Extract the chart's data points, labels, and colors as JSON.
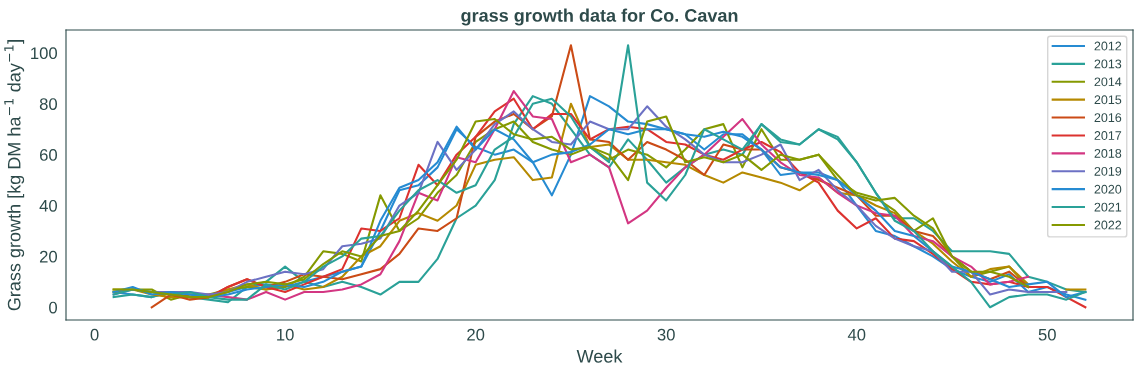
{
  "chart_data": {
    "type": "line",
    "title": "grass growth data for Co. Cavan",
    "xlabel": "Week",
    "ylabel": "Grass growth [kg DM ha$^{−1}$ day$^{−1}$]",
    "x": [
      1,
      2,
      3,
      4,
      5,
      6,
      7,
      8,
      9,
      10,
      11,
      12,
      13,
      14,
      15,
      16,
      17,
      18,
      19,
      20,
      21,
      22,
      23,
      24,
      25,
      26,
      27,
      28,
      29,
      30,
      31,
      32,
      33,
      34,
      35,
      36,
      37,
      38,
      39,
      40,
      41,
      42,
      43,
      44,
      45,
      46,
      47,
      48,
      49,
      50,
      51,
      52
    ],
    "xlim": [
      -1.5,
      54.5
    ],
    "xticks": [
      0,
      10,
      20,
      30,
      40,
      50
    ],
    "ylim": [
      -5,
      109
    ],
    "yticks": [
      0,
      20,
      40,
      60,
      80,
      100
    ],
    "grid": false,
    "legend": "top right",
    "line_style": "solid",
    "marker": "none",
    "series": [
      {
        "name": "2012",
        "color": "#268bd2",
        "values": [
          6,
          5,
          4,
          6,
          5,
          4,
          6,
          8,
          9,
          8,
          10,
          12,
          14,
          16,
          30,
          46,
          48,
          55,
          70,
          63,
          60,
          62,
          57,
          44,
          60,
          83,
          79,
          73,
          72,
          70,
          68,
          62,
          68,
          68,
          62,
          52,
          53,
          53,
          50,
          40,
          30,
          28,
          24,
          20,
          15,
          12,
          10,
          13,
          6,
          8,
          5,
          3
        ]
      },
      {
        "name": "2013",
        "color": "#2aa198",
        "values": [
          4,
          5,
          4,
          6,
          4,
          3,
          2,
          8,
          10,
          16,
          10,
          8,
          10,
          8,
          5,
          10,
          10,
          19,
          35,
          40,
          50,
          72,
          83,
          80,
          70,
          60,
          55,
          66,
          58,
          49,
          55,
          60,
          62,
          60,
          72,
          65,
          64,
          70,
          66,
          57,
          45,
          35,
          35,
          30,
          22,
          22,
          22,
          21,
          12,
          10,
          7,
          6
        ]
      },
      {
        "name": "2014",
        "color": "#859900",
        "values": [
          6,
          7,
          7,
          3,
          5,
          5,
          7,
          8,
          7,
          8,
          12,
          22,
          21,
          18,
          44,
          30,
          35,
          45,
          52,
          65,
          70,
          73,
          65,
          62,
          60,
          63,
          58,
          62,
          60,
          55,
          62,
          70,
          72,
          55,
          70,
          58,
          58,
          60,
          50,
          45,
          43,
          38,
          30,
          35,
          20,
          12,
          14,
          16,
          8,
          null,
          null,
          null
        ]
      },
      {
        "name": "2015",
        "color": "#b58900",
        "values": [
          7,
          7,
          5,
          4,
          4,
          4,
          7,
          9,
          7,
          9,
          7,
          8,
          12,
          20,
          24,
          34,
          37,
          34,
          40,
          56,
          58,
          59,
          50,
          51,
          80,
          63,
          64,
          58,
          58,
          57,
          56,
          52,
          49,
          53,
          51,
          49,
          46,
          51,
          45,
          44,
          40,
          37,
          30,
          25,
          18,
          12,
          15,
          16,
          9,
          null,
          7,
          7
        ]
      },
      {
        "name": "2016",
        "color": "#cb4b16",
        "values": [
          null,
          null,
          0,
          5,
          3,
          4,
          8,
          11,
          8,
          10,
          13,
          12,
          11,
          13,
          15,
          21,
          31,
          30,
          35,
          67,
          73,
          76,
          70,
          75,
          103,
          66,
          65,
          58,
          65,
          62,
          58,
          52,
          64,
          62,
          62,
          55,
          53,
          50,
          47,
          44,
          36,
          36,
          30,
          28,
          20,
          14,
          11,
          14,
          8,
          null,
          null,
          null
        ]
      },
      {
        "name": "2017",
        "color": "#dc322f",
        "values": [
          null,
          null,
          null,
          5,
          4,
          4,
          8,
          11,
          8,
          6,
          9,
          12,
          15,
          31,
          30,
          35,
          56,
          48,
          60,
          67,
          77,
          82,
          70,
          76,
          76,
          66,
          70,
          71,
          70,
          65,
          64,
          60,
          58,
          62,
          65,
          61,
          53,
          49,
          38,
          31,
          35,
          27,
          26,
          21,
          15,
          10,
          9,
          10,
          8,
          8,
          4,
          0
        ]
      },
      {
        "name": "2018",
        "color": "#d33682",
        "values": [
          null,
          null,
          null,
          null,
          4,
          5,
          4,
          3,
          6,
          3,
          6,
          6,
          7,
          9,
          13,
          26,
          45,
          42,
          59,
          57,
          70,
          85,
          75,
          74,
          57,
          60,
          55,
          33,
          38,
          47,
          55,
          60,
          67,
          74,
          64,
          57,
          52,
          51,
          45,
          40,
          37,
          36,
          28,
          26,
          20,
          16,
          9,
          10,
          12,
          null,
          null,
          null
        ]
      },
      {
        "name": "2019",
        "color": "#6c71c4",
        "values": [
          5,
          7,
          6,
          6,
          6,
          5,
          6,
          10,
          12,
          14,
          13,
          15,
          24,
          25,
          27,
          40,
          45,
          65,
          54,
          62,
          72,
          77,
          70,
          65,
          64,
          73,
          70,
          70,
          79,
          71,
          66,
          60,
          57,
          57,
          60,
          64,
          50,
          54,
          46,
          40,
          32,
          27,
          24,
          22,
          14,
          14,
          5,
          7,
          6,
          6,
          6,
          null
        ]
      },
      {
        "name": "2020",
        "color": "#268bd2",
        "values": [
          6,
          8,
          5,
          6,
          5,
          4,
          5,
          7,
          8,
          9,
          8,
          10,
          14,
          16,
          34,
          47,
          50,
          57,
          71,
          62,
          70,
          66,
          57,
          60,
          61,
          64,
          70,
          68,
          70,
          70,
          68,
          67,
          69,
          67,
          62,
          55,
          53,
          52,
          50,
          44,
          38,
          30,
          28,
          22,
          16,
          14,
          11,
          8,
          9,
          10,
          4,
          6
        ]
      },
      {
        "name": "2021",
        "color": "#2aa198",
        "values": [
          5,
          7,
          6,
          5,
          6,
          4,
          3,
          3,
          9,
          7,
          10,
          16,
          20,
          27,
          28,
          38,
          46,
          50,
          45,
          48,
          62,
          67,
          80,
          82,
          75,
          63,
          57,
          103,
          49,
          42,
          52,
          70,
          66,
          62,
          72,
          66,
          64,
          70,
          67,
          57,
          45,
          34,
          30,
          22,
          16,
          10,
          0,
          4,
          5,
          5,
          3,
          6
        ]
      },
      {
        "name": "2022",
        "color": "#859900",
        "values": [
          7,
          7,
          6,
          5,
          4,
          4,
          6,
          9,
          10,
          9,
          11,
          17,
          22,
          20,
          28,
          30,
          38,
          48,
          58,
          73,
          74,
          68,
          66,
          67,
          62,
          63,
          60,
          50,
          73,
          75,
          57,
          59,
          57,
          60,
          54,
          60,
          58,
          60,
          52,
          44,
          42,
          43,
          36,
          31,
          20,
          14,
          14,
          12,
          8,
          null,
          null,
          null
        ]
      }
    ]
  }
}
